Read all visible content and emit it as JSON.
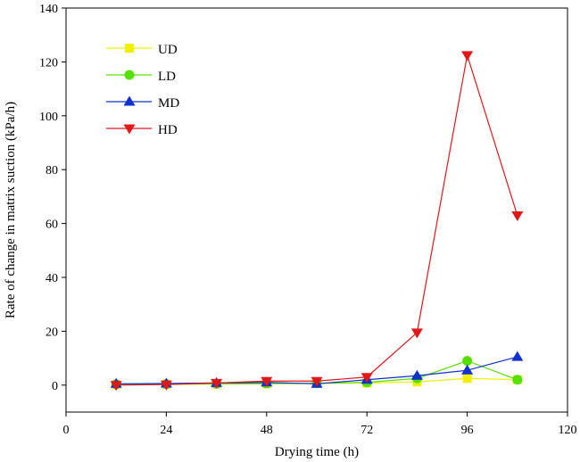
{
  "chart_data": {
    "type": "line",
    "xlabel": "Drying time (h)",
    "ylabel": "Rate of change in matrix suction (kPa/h)",
    "xlim": [
      0,
      120
    ],
    "ylim": [
      -10,
      140
    ],
    "xticks": [
      0,
      24,
      48,
      72,
      96,
      120
    ],
    "yticks": [
      0,
      20,
      40,
      60,
      80,
      100,
      120,
      140
    ],
    "grid": false,
    "legend_position": "top-left",
    "x": [
      12,
      24,
      36,
      48,
      60,
      72,
      84,
      96,
      108
    ],
    "series": [
      {
        "name": "UD",
        "color": "#f0f000",
        "marker": "square",
        "values": [
          0.2,
          0.3,
          0.4,
          0.5,
          0.6,
          0.8,
          1.2,
          2.5,
          2.0
        ]
      },
      {
        "name": "LD",
        "color": "#55e000",
        "marker": "circle",
        "values": [
          0.3,
          0.4,
          0.5,
          0.6,
          0.7,
          1.0,
          2.5,
          9.0,
          2.0
        ]
      },
      {
        "name": "MD",
        "color": "#1030d0",
        "marker": "triangle-up",
        "values": [
          0.5,
          0.6,
          0.8,
          1.0,
          0.5,
          2.0,
          3.5,
          5.5,
          10.5
        ]
      },
      {
        "name": "HD",
        "color": "#e01818",
        "marker": "triangle-down",
        "values": [
          0.0,
          0.2,
          0.8,
          1.5,
          1.5,
          3.0,
          19.5,
          122.5,
          63.0
        ]
      }
    ]
  }
}
